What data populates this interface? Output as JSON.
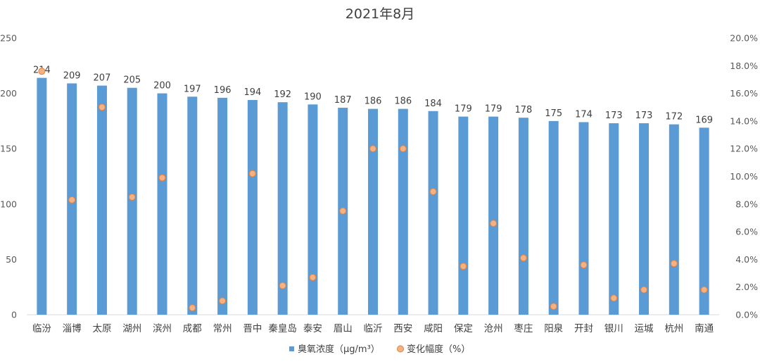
{
  "chart_data": {
    "type": "bar",
    "title": "2021年8月",
    "categories": [
      "临汾",
      "淄博",
      "太原",
      "湖州",
      "滨州",
      "成都",
      "常州",
      "晋中",
      "秦皇岛",
      "泰安",
      "眉山",
      "临沂",
      "西安",
      "咸阳",
      "保定",
      "沧州",
      "枣庄",
      "阳泉",
      "开封",
      "银川",
      "运城",
      "杭州",
      "南通"
    ],
    "series": [
      {
        "name": "臭氧浓度（μg/m³）",
        "axis": "left",
        "values": [
          214,
          209,
          207,
          205,
          200,
          197,
          196,
          194,
          192,
          190,
          187,
          186,
          186,
          184,
          179,
          179,
          178,
          175,
          174,
          173,
          173,
          172,
          169
        ],
        "labels": [
          "214",
          "209",
          "207",
          "205",
          "200",
          "197",
          "196",
          "194",
          "192",
          "190",
          "187",
          "186",
          "186",
          "184",
          "179",
          "179",
          "178",
          "175",
          "174",
          "173",
          "173",
          "172",
          "169"
        ],
        "color": "#5b9bd5"
      },
      {
        "name": "变化幅度（%）",
        "axis": "right",
        "marker": "circle",
        "values": [
          17.6,
          8.3,
          15.0,
          8.5,
          9.9,
          0.5,
          1.0,
          10.2,
          2.1,
          2.7,
          7.5,
          12.0,
          12.0,
          8.9,
          3.5,
          6.6,
          4.1,
          0.6,
          3.6,
          1.2,
          1.8,
          3.7,
          1.8
        ],
        "color": "#f4b183",
        "edge_color": "#ed7d31"
      }
    ],
    "y_left": {
      "min": 0,
      "max": 250,
      "ticks": [
        "0",
        "50",
        "100",
        "150",
        "200",
        "250"
      ]
    },
    "y_right": {
      "min": 0,
      "max": 20,
      "ticks": [
        "0.0%",
        "2.0%",
        "4.0%",
        "6.0%",
        "8.0%",
        "10.0%",
        "12.0%",
        "14.0%",
        "16.0%",
        "18.0%",
        "20.0%"
      ]
    },
    "grid": false,
    "legend": "bottom"
  }
}
